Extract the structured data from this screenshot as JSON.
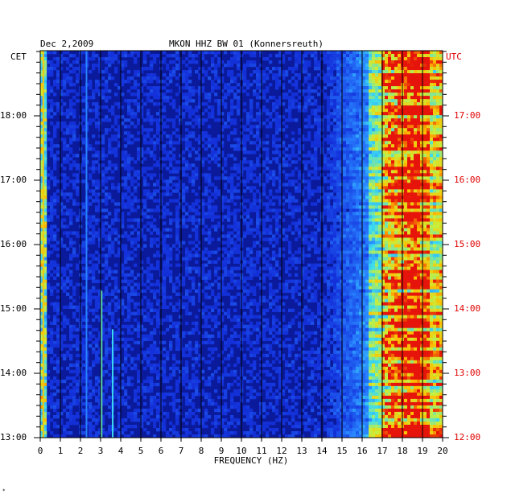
{
  "header": {
    "date": "Dec 2,2009",
    "station": "MKON HHZ BW 01 (Konnersreuth)"
  },
  "left_axis": {
    "label": "CET",
    "ticks": [
      "18:00",
      "17:00",
      "16:00",
      "15:00",
      "14:00",
      "13:00"
    ]
  },
  "right_axis": {
    "label": "UTC",
    "ticks": [
      "17:00",
      "16:00",
      "15:00",
      "14:00",
      "13:00",
      "12:00"
    ]
  },
  "corner_mark": "*",
  "colors": {
    "background": "#0a1a9a",
    "grid": "#000000",
    "utc": "#e00000"
  },
  "chart_data": {
    "type": "heatmap",
    "title": "MKON HHZ BW 01 (Konnersreuth)",
    "subtitle": "Dec 2,2009",
    "xlabel": "FREQUENCY (HZ)",
    "ylabel": "CET",
    "y2label": "UTC",
    "x_ticks": [
      0,
      1,
      2,
      3,
      4,
      5,
      6,
      7,
      8,
      9,
      10,
      11,
      12,
      13,
      14,
      15,
      16,
      17,
      18,
      19,
      20
    ],
    "xlim": [
      0,
      20
    ],
    "y_ticks_cet": [
      "18:00",
      "17:00",
      "16:00",
      "15:00",
      "14:00",
      "13:00"
    ],
    "y_ticks_utc": [
      "17:00",
      "16:00",
      "15:00",
      "14:00",
      "13:00",
      "12:00"
    ],
    "grid": true
  }
}
